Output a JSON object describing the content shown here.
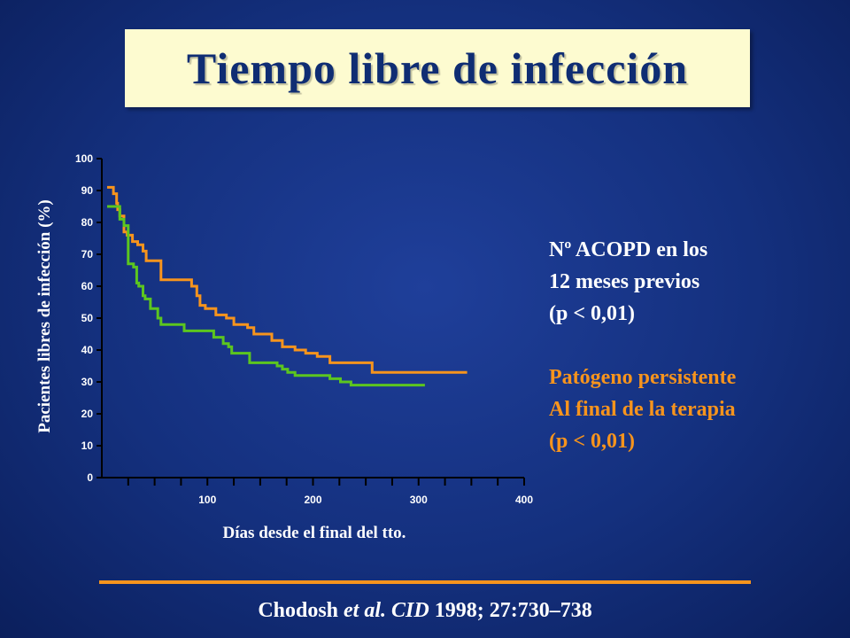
{
  "title": "Tiempo libre de infección",
  "chart_data": {
    "type": "line",
    "xlabel": "Días desde el final del tto.",
    "ylabel": "Pacientes libres de infección  (%)",
    "xlim": [
      0,
      400
    ],
    "ylim": [
      0,
      100
    ],
    "xticks": [
      100,
      200,
      300,
      400
    ],
    "yticks": [
      0,
      10,
      20,
      30,
      40,
      50,
      60,
      70,
      80,
      90,
      100
    ],
    "grid": false,
    "series": [
      {
        "color": "#f7941d",
        "x": [
          5,
          11,
          14,
          15,
          17,
          21,
          24,
          29,
          34,
          39,
          42,
          46,
          56,
          69,
          85,
          90,
          93,
          98,
          108,
          118,
          125,
          138,
          144,
          161,
          171,
          183,
          193,
          204,
          216,
          226,
          256,
          346
        ],
        "y": [
          91,
          89,
          86,
          84,
          82,
          77,
          76,
          74,
          73,
          71,
          68,
          68,
          62,
          62,
          60,
          57,
          54,
          53,
          51,
          50,
          48,
          47,
          45,
          43,
          41,
          40,
          39,
          38,
          36,
          36,
          33,
          33
        ]
      },
      {
        "color": "#5cc61f",
        "x": [
          5,
          15,
          17,
          21,
          25,
          30,
          33,
          35,
          39,
          41,
          46,
          53,
          56,
          66,
          78,
          86,
          106,
          115,
          120,
          123,
          130,
          140,
          156,
          166,
          171,
          176,
          183,
          206,
          216,
          226,
          236,
          306
        ],
        "y": [
          85,
          85,
          81,
          79,
          67,
          66,
          61,
          60,
          57,
          56,
          53,
          50,
          48,
          48,
          46,
          46,
          44,
          42,
          41,
          39,
          39,
          36,
          36,
          35,
          34,
          33,
          32,
          32,
          31,
          30,
          29,
          29
        ]
      }
    ]
  },
  "legend": {
    "series1_color": "#ffffff",
    "series1_lines": [
      "Nº ACOPD en los",
      "12 meses previos",
      "(p < 0,01)"
    ],
    "series2_color": "#f7941d",
    "series2_lines": [
      "Patógeno persistente",
      "Al final de la terapia",
      "(p < 0,01)"
    ]
  },
  "citation": {
    "author": "Chodosh ",
    "etal": "et al. CID",
    "rest": " 1998; 27:730–738"
  }
}
